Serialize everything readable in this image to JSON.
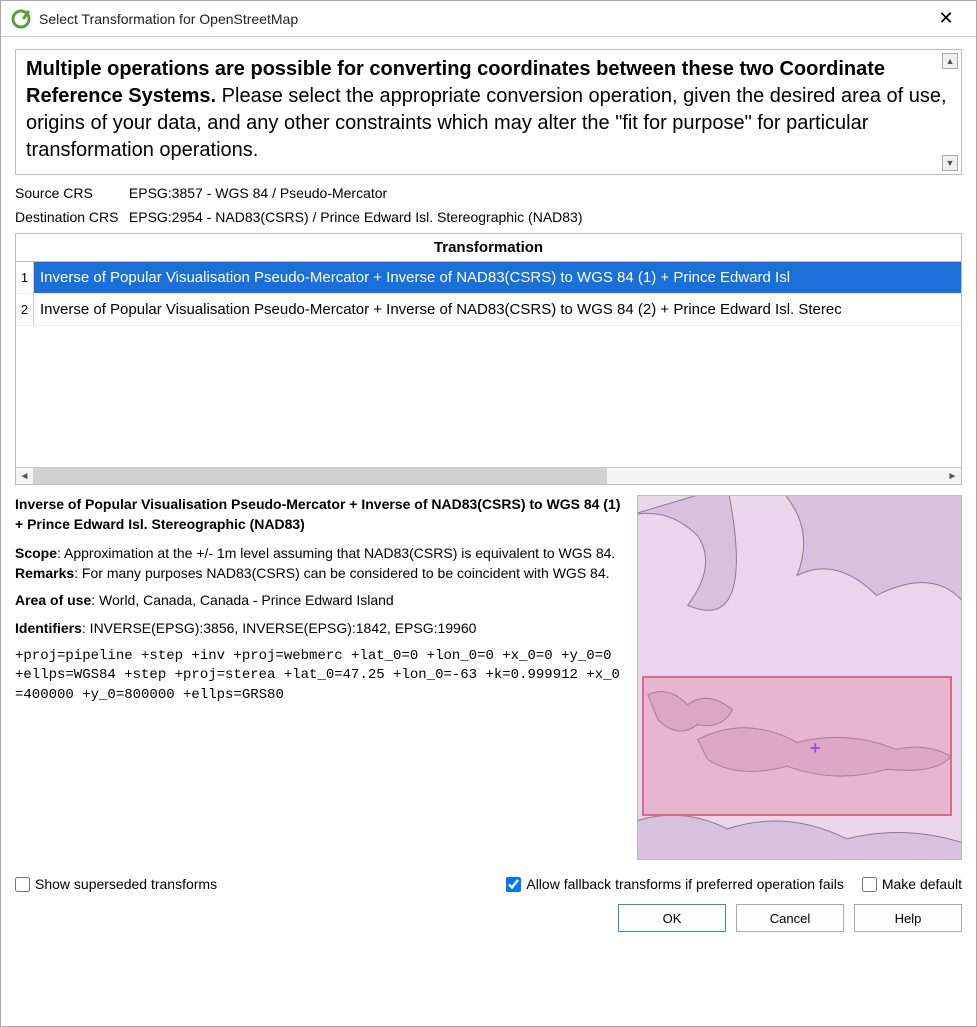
{
  "window": {
    "title": "Select Transformation for OpenStreetMap"
  },
  "message": {
    "bold_part": "Multiple operations are possible for converting coordinates between these two Coordinate Reference Systems.",
    "rest": " Please select the appropriate conversion operation, given the desired area of use, origins of your data, and any other constraints which may alter the \"fit for purpose\" for particular transformation operations."
  },
  "crs": {
    "source_label": "Source CRS",
    "source_value": "EPSG:3857 - WGS 84 / Pseudo-Mercator",
    "dest_label": "Destination CRS",
    "dest_value": "EPSG:2954 - NAD83(CSRS) / Prince Edward Isl. Stereographic (NAD83)"
  },
  "table": {
    "header": "Transformation",
    "rows": [
      {
        "n": "1",
        "text": "Inverse of Popular Visualisation Pseudo-Mercator + Inverse of NAD83(CSRS) to WGS 84 (1) + Prince Edward Isl",
        "selected": true
      },
      {
        "n": "2",
        "text": "Inverse of Popular Visualisation Pseudo-Mercator + Inverse of NAD83(CSRS) to WGS 84 (2) + Prince Edward Isl. Sterec",
        "selected": false
      }
    ]
  },
  "detail": {
    "title": "Inverse of Popular Visualisation Pseudo-Mercator + Inverse of NAD83(CSRS) to WGS 84 (1) + Prince Edward Isl. Stereographic (NAD83)",
    "scope_label": "Scope",
    "scope_text": ": Approximation at the +/- 1m level assuming that NAD83(CSRS) is equivalent to WGS 84.",
    "remarks_label": "Remarks",
    "remarks_text": ": For many purposes NAD83(CSRS) can be considered to be coincident with WGS 84.",
    "area_label": "Area of use",
    "area_text": ": World, Canada, Canada - Prince Edward Island",
    "ident_label": "Identifiers",
    "ident_text": ": INVERSE(EPSG):3856, INVERSE(EPSG):1842, EPSG:19960",
    "proj": "+proj=pipeline +step +inv +proj=webmerc +lat_0=0 +lon_0=0 +x_0=0 +y_0=0 +ellps=WGS84 +step +proj=sterea +lat_0=47.25 +lon_0=-63 +k=0.999912 +x_0=400000 +y_0=800000 +ellps=GRS80"
  },
  "map": {
    "background": "#e9d6ed",
    "land_fill": "#d8c0df",
    "land_stroke": "#8a7a90",
    "bbox_border": "#d96a8a",
    "bbox_fill": "rgba(228,120,150,0.35)",
    "cross_color": "#a050d0"
  },
  "checks": {
    "show_superseded_label": "Show superseded transforms",
    "show_superseded_checked": false,
    "allow_fallback_label": "Allow fallback transforms if preferred operation fails",
    "allow_fallback_checked": true,
    "make_default_label": "Make default",
    "make_default_checked": false
  },
  "buttons": {
    "ok": "OK",
    "cancel": "Cancel",
    "help": "Help"
  },
  "colors": {
    "selection": "#1a6fd8",
    "border": "#bbbbbb"
  }
}
